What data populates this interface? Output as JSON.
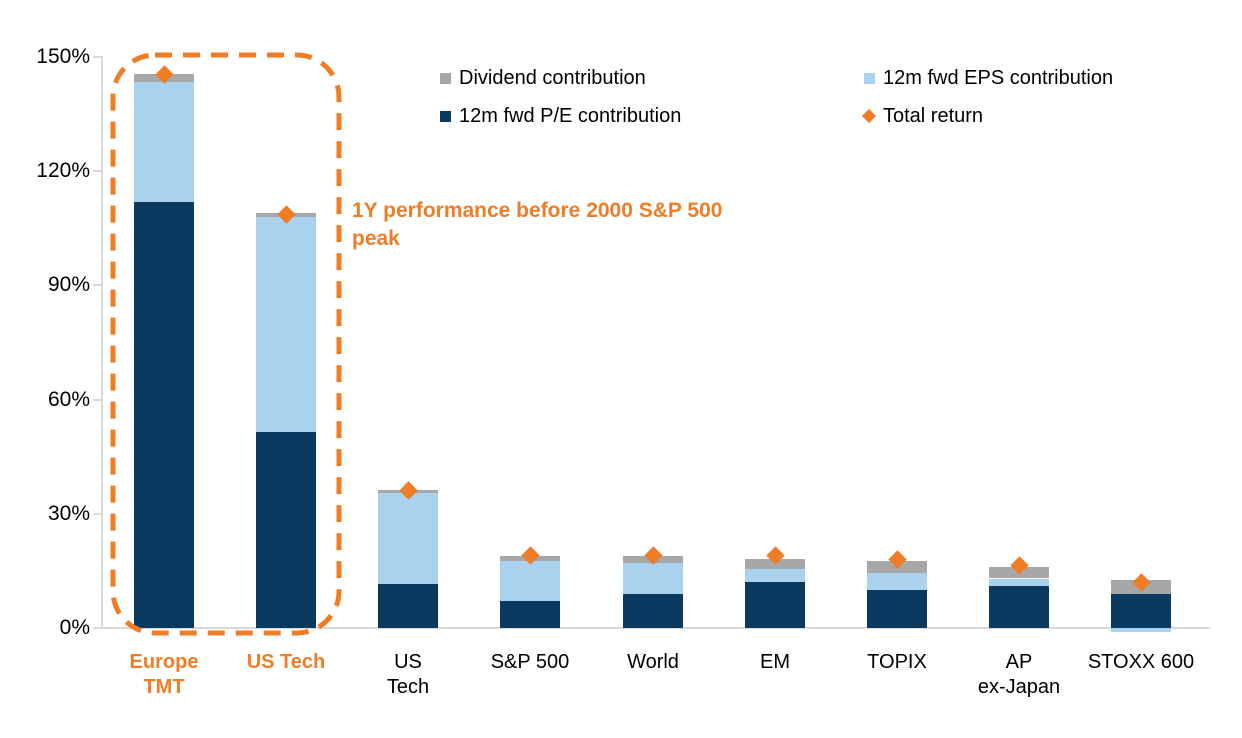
{
  "annotation": {
    "text": "1Y performance before 2000 S&P 500 peak"
  },
  "legend": {
    "rows": [
      [
        {
          "label": "Dividend contribution",
          "swatch": "square",
          "color_key": "dividend"
        },
        {
          "label": "12m fwd EPS contribution",
          "swatch": "square",
          "color_key": "eps"
        }
      ],
      [
        {
          "label": "12m fwd P/E contribution",
          "swatch": "square",
          "color_key": "pe"
        },
        {
          "label": "Total return",
          "swatch": "diamond",
          "color_key": "marker"
        }
      ]
    ]
  },
  "chart_data": {
    "type": "bar",
    "stacked": true,
    "grid": false,
    "legend_position": "top",
    "ylim": [
      0,
      150
    ],
    "yticks": [
      "0%",
      "30%",
      "60%",
      "90%",
      "120%",
      "150%"
    ],
    "colors": {
      "pe": "#0B3A60",
      "eps": "#AAD1EE",
      "dividend": "#A7A7A7",
      "marker": "#EF7D28",
      "highlight": "#F07D26"
    },
    "categories": [
      {
        "lines": [
          "Europe",
          "TMT"
        ],
        "highlight": true
      },
      {
        "lines": [
          "US Tech"
        ],
        "highlight": true
      },
      {
        "lines": [
          "US",
          "Tech"
        ],
        "highlight": false
      },
      {
        "lines": [
          "S&P 500"
        ],
        "highlight": false
      },
      {
        "lines": [
          "World"
        ],
        "highlight": false
      },
      {
        "lines": [
          "EM"
        ],
        "highlight": false
      },
      {
        "lines": [
          "TOPIX"
        ],
        "highlight": false
      },
      {
        "lines": [
          "AP",
          "ex-Japan"
        ],
        "highlight": false
      },
      {
        "lines": [
          "STOXX 600"
        ],
        "highlight": false
      }
    ],
    "series": [
      {
        "key": "pe",
        "name": "12m fwd P/E contribution",
        "values": [
          112,
          51.5,
          11.5,
          7,
          9,
          12,
          10,
          11,
          9
        ]
      },
      {
        "key": "eps",
        "name": "12m fwd EPS contribution",
        "values": [
          31.5,
          56.5,
          24,
          10.5,
          8,
          3.5,
          4.5,
          2,
          -1
        ]
      },
      {
        "key": "dividend",
        "name": "Dividend contribution",
        "values": [
          2,
          1,
          0.8,
          1.5,
          2,
          2.5,
          3,
          3,
          3.5
        ]
      }
    ],
    "markers": {
      "name": "Total return",
      "values": [
        145.5,
        108.5,
        36,
        19,
        19,
        19,
        18,
        16.5,
        12
      ]
    },
    "unit": "%"
  }
}
